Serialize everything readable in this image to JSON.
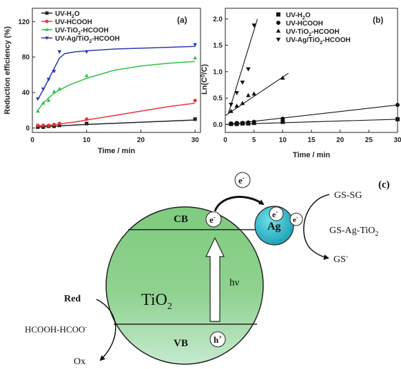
{
  "chart_data": [
    {
      "type": "line",
      "panel_label": "(a)",
      "xlabel": "Time / min",
      "ylabel": "Reduction efficiency (%)",
      "xlim": [
        0,
        31
      ],
      "ylim": [
        -5,
        135
      ],
      "xticks": [
        0,
        10,
        20,
        30
      ],
      "yticks": [
        0,
        40,
        80,
        120
      ],
      "legend_position": "top-left",
      "x": [
        1,
        2,
        3,
        4,
        5,
        10,
        30
      ],
      "series": [
        {
          "name": "UV-H2O",
          "name_parts": [
            "UV-H",
            "2",
            "O"
          ],
          "color": "#222222",
          "marker": "square",
          "values": [
            1,
            1,
            2,
            2,
            3,
            5,
            10
          ],
          "fit": {
            "x": [
              1,
              10,
              30
            ],
            "y": [
              1,
              4,
              9
            ]
          }
        },
        {
          "name": "UV-HCOOH",
          "name_parts": [
            "UV-HCOOH"
          ],
          "color": "#e8333a",
          "marker": "circle",
          "values": [
            3,
            3,
            3,
            4,
            5,
            10,
            31
          ],
          "fit": {
            "x": [
              1,
              3,
              5,
              8,
              10,
              15,
              20,
              25,
              30
            ],
            "y": [
              2.5,
              3,
              4.5,
              7,
              9,
              14,
              19,
              24,
              28
            ]
          }
        },
        {
          "name": "UV-TiO2-HCOOH",
          "name_parts": [
            "UV-TiO",
            "2",
            "-HCOOH"
          ],
          "color": "#2ec04a",
          "marker": "triangle-up",
          "values": [
            19,
            28,
            31,
            41,
            44,
            59,
            79
          ],
          "fit": {
            "x": [
              1,
              2,
              3,
              4,
              5,
              7,
              10,
              15,
              20,
              25,
              30
            ],
            "y": [
              20,
              28,
              34,
              39,
              43,
              49,
              56,
              65,
              70,
              73,
              75
            ]
          }
        },
        {
          "name": "UV-Ag/TiO2-HCOOH",
          "name_parts": [
            "UV-Ag/TiO",
            "2",
            "-HCOOH"
          ],
          "color": "#2b3bb0",
          "marker": "triangle-down",
          "values": [
            33,
            44,
            55,
            64,
            86,
            86,
            94
          ],
          "fit": {
            "x": [
              1,
              2,
              3,
              4,
              5,
              6,
              8,
              10,
              15,
              20,
              25,
              30
            ],
            "y": [
              32,
              43,
              55,
              67,
              79,
              84,
              86,
              87,
              89,
              90,
              91,
              92
            ]
          }
        }
      ]
    },
    {
      "type": "scatter",
      "panel_label": "(b)",
      "xlabel": "Time / min",
      "ylabel": "Ln(C0/C)",
      "ylabel_parts": [
        "Ln(C",
        "0",
        "/C)"
      ],
      "xlim": [
        0,
        30
      ],
      "ylim": [
        -0.15,
        2.2
      ],
      "xticks": [
        0,
        5,
        10,
        15,
        20,
        25,
        30
      ],
      "yticks": [
        0.0,
        0.5,
        1.0,
        1.5,
        2.0
      ],
      "legend_position": "top-right",
      "series": [
        {
          "name": "UV-H2O",
          "name_parts": [
            "UV-H",
            "2",
            "O"
          ],
          "marker": "square",
          "x": [
            1,
            2,
            3,
            4,
            5,
            10,
            30
          ],
          "values": [
            0.01,
            0.01,
            0.02,
            0.02,
            0.03,
            0.05,
            0.1
          ],
          "fit": {
            "x": [
              0,
              30
            ],
            "y": [
              0,
              0.1
            ]
          }
        },
        {
          "name": "UV-HCOOH",
          "name_parts": [
            "UV-HCOOH"
          ],
          "marker": "circle",
          "x": [
            1,
            2,
            3,
            4,
            5,
            10,
            30
          ],
          "values": [
            0.02,
            0.03,
            0.03,
            0.04,
            0.05,
            0.11,
            0.37
          ],
          "fit": {
            "x": [
              0,
              30
            ],
            "y": [
              0,
              0.37
            ]
          }
        },
        {
          "name": "UV-TiO2-HCOOH",
          "name_parts": [
            "UV-TiO",
            "2",
            "-HCOOH"
          ],
          "marker": "triangle-up",
          "x": [
            1,
            2,
            3,
            4,
            5,
            10
          ],
          "values": [
            0.25,
            0.35,
            0.4,
            0.55,
            0.58,
            0.88
          ],
          "fit": {
            "x": [
              0,
              11
            ],
            "y": [
              0.17,
              0.97
            ]
          }
        },
        {
          "name": "UV-Ag/TiO2-HCOOH",
          "name_parts": [
            "UV-Ag/TiO",
            "2",
            "-HCOOH"
          ],
          "marker": "triangle-down",
          "x": [
            1,
            2,
            3,
            4,
            5
          ],
          "values": [
            0.38,
            0.6,
            0.8,
            1.05,
            1.88
          ],
          "fit": {
            "x": [
              0.5,
              5.6
            ],
            "y": [
              0.2,
              2.0
            ]
          }
        }
      ]
    }
  ],
  "diagram": {
    "panel_label": "(c)",
    "cb": "CB",
    "vb": "VB",
    "tio2": [
      "TiO",
      "2"
    ],
    "ag": "Ag",
    "hv": "hν",
    "electron": "e",
    "electron_charge": "-",
    "hole": "h",
    "hole_charge": "+",
    "gs_sg": "GS-SG",
    "gs_ag_tio2": [
      "GS-Ag-TiO",
      "2"
    ],
    "gs_minus": [
      "GS",
      "-"
    ],
    "red": "Red",
    "hcooh": [
      "HCOOH-HCOO",
      "-"
    ],
    "ox": "Ox"
  }
}
